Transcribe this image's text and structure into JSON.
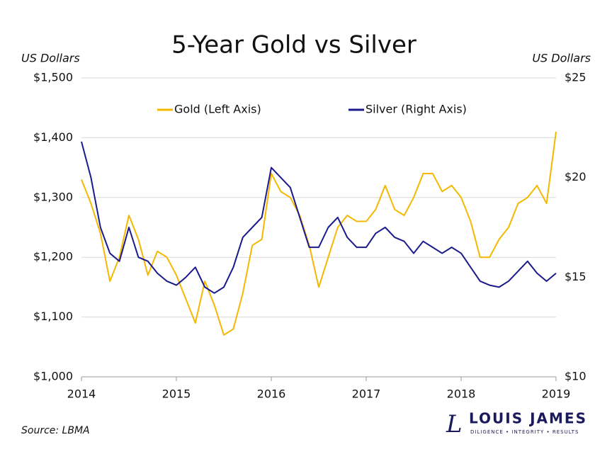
{
  "chart_data": {
    "type": "line",
    "title": "5-Year Gold vs Silver",
    "y_label": "US Dollars",
    "y2_label": "US Dollars",
    "source": "Source: LBMA",
    "logo": {
      "mark": "L",
      "name": "LOUIS JAMES",
      "tagline": "DILIGENCE • INTEGRITY • RESULTS"
    },
    "x": [
      2014.0,
      2014.1,
      2014.2,
      2014.3,
      2014.4,
      2014.5,
      2014.6,
      2014.7,
      2014.8,
      2014.9,
      2015.0,
      2015.1,
      2015.2,
      2015.3,
      2015.4,
      2015.5,
      2015.6,
      2015.7,
      2015.8,
      2015.9,
      2016.0,
      2016.1,
      2016.2,
      2016.3,
      2016.4,
      2016.5,
      2016.6,
      2016.7,
      2016.8,
      2016.9,
      2017.0,
      2017.1,
      2017.2,
      2017.3,
      2017.4,
      2017.5,
      2017.6,
      2017.7,
      2017.8,
      2017.9,
      2018.0,
      2018.1,
      2018.2,
      2018.3,
      2018.4,
      2018.5,
      2018.6,
      2018.7,
      2018.8,
      2018.9,
      2019.0
    ],
    "xlim": [
      2014,
      2019
    ],
    "xticks": [
      2014,
      2015,
      2016,
      2017,
      2018,
      2019
    ],
    "ylim": [
      1000,
      1500
    ],
    "yticks": [
      {
        "value": 1000,
        "label": "$1,000"
      },
      {
        "value": 1100,
        "label": "$1,100"
      },
      {
        "value": 1200,
        "label": "$1,200"
      },
      {
        "value": 1300,
        "label": "$1,300"
      },
      {
        "value": 1400,
        "label": "$1,400"
      },
      {
        "value": 1500,
        "label": "$1,500"
      }
    ],
    "y2lim": [
      10,
      25
    ],
    "y2ticks": [
      {
        "value": 10,
        "label": "$10"
      },
      {
        "value": 15,
        "label": "$15"
      },
      {
        "value": 20,
        "label": "$20"
      },
      {
        "value": 25,
        "label": "$25"
      }
    ],
    "grid": true,
    "legend": "top",
    "series": [
      {
        "name": "Gold (Left Axis)",
        "color": "#f5b800",
        "axis": "y",
        "values": [
          1330,
          1290,
          1240,
          1160,
          1200,
          1270,
          1230,
          1170,
          1210,
          1200,
          1170,
          1130,
          1090,
          1160,
          1120,
          1070,
          1080,
          1140,
          1220,
          1230,
          1340,
          1310,
          1300,
          1270,
          1220,
          1150,
          1200,
          1250,
          1270,
          1260,
          1260,
          1280,
          1320,
          1280,
          1270,
          1300,
          1340,
          1340,
          1310,
          1320,
          1300,
          1260,
          1200,
          1200,
          1230,
          1250,
          1290,
          1300,
          1320,
          1290,
          1410
        ]
      },
      {
        "name": "Silver (Right Axis)",
        "color": "#1a1a8c",
        "axis": "y2",
        "values": [
          21.8,
          20.0,
          17.5,
          16.2,
          15.8,
          17.5,
          16.0,
          15.8,
          15.2,
          14.8,
          14.6,
          15.0,
          15.5,
          14.5,
          14.2,
          14.5,
          15.5,
          17.0,
          17.5,
          18.0,
          20.5,
          20.0,
          19.5,
          18.0,
          16.5,
          16.5,
          17.5,
          18.0,
          17.0,
          16.5,
          16.5,
          17.2,
          17.5,
          17.0,
          16.8,
          16.2,
          16.8,
          16.5,
          16.2,
          16.5,
          16.2,
          15.5,
          14.8,
          14.6,
          14.5,
          14.8,
          15.3,
          15.8,
          15.2,
          14.8,
          15.2
        ]
      }
    ]
  }
}
